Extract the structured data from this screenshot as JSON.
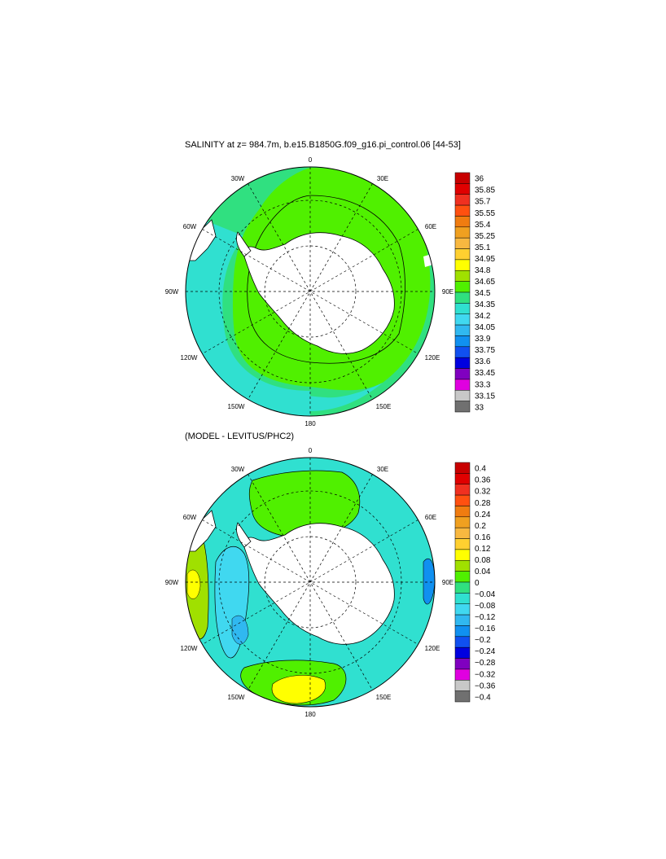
{
  "panel1": {
    "title": "SALINITY at z= 984.7m, b.e15.B1850G.f09_g16.pi_control.06 [44-53]",
    "lon_labels": {
      "n": "0",
      "ne": "30E",
      "ene": "60E",
      "e": "90E",
      "ese": "120E",
      "sse": "150E",
      "s": "180",
      "ssw": "150W",
      "wsw": "120W",
      "w": "90W",
      "wnw": "60W",
      "nnw": "30W"
    },
    "colorbar": {
      "labels": [
        "36",
        "35.85",
        "35.7",
        "35.55",
        "35.4",
        "35.25",
        "35.1",
        "34.95",
        "34.8",
        "34.65",
        "34.5",
        "34.35",
        "34.2",
        "34.05",
        "33.9",
        "33.75",
        "33.6",
        "33.45",
        "33.3",
        "33.15",
        "33"
      ],
      "colors": [
        "#c80000",
        "#e00000",
        "#f03020",
        "#ff5010",
        "#f07c10",
        "#f0a020",
        "#f8b840",
        "#ffd030",
        "#ffff00",
        "#a0e000",
        "#50f000",
        "#30e080",
        "#30e0d0",
        "#40d8f0",
        "#30b8f0",
        "#1090f0",
        "#1050f0",
        "#0000e0",
        "#8000c0",
        "#e000e0",
        "#c8c8c8",
        "#707070"
      ]
    }
  },
  "panel2": {
    "title": "(MODEL - LEVITUS/PHC2)",
    "lon_labels": {
      "n": "0",
      "ne": "30E",
      "ene": "60E",
      "e": "90E",
      "ese": "120E",
      "sse": "150E",
      "s": "180",
      "ssw": "150W",
      "wsw": "120W",
      "w": "90W",
      "wnw": "60W",
      "nnw": "30W"
    },
    "colorbar": {
      "labels": [
        "0.4",
        "0.36",
        "0.32",
        "0.28",
        "0.24",
        "0.2",
        "0.16",
        "0.12",
        "0.08",
        "0.04",
        "0",
        "−0.04",
        "−0.08",
        "−0.12",
        "−0.16",
        "−0.2",
        "−0.24",
        "−0.28",
        "−0.32",
        "−0.36",
        "−0.4"
      ],
      "colors": [
        "#c80000",
        "#e00000",
        "#f03020",
        "#ff5010",
        "#f07c10",
        "#f0a020",
        "#f8b840",
        "#ffd030",
        "#ffff00",
        "#a0e000",
        "#50f000",
        "#30e080",
        "#30e0d0",
        "#40d8f0",
        "#30b8f0",
        "#1090f0",
        "#1050f0",
        "#0000e0",
        "#8000c0",
        "#e000e0",
        "#c8c8c8",
        "#707070"
      ]
    }
  }
}
